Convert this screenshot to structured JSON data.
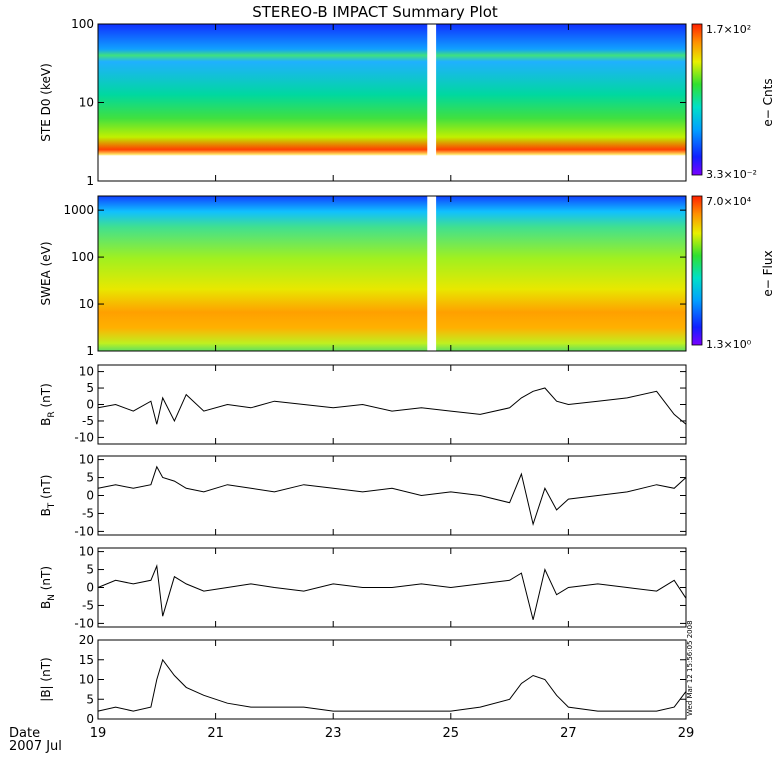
{
  "title": "STEREO-B IMPACT Summary Plot",
  "date_label": "Date",
  "date_value": "2007 Jul",
  "stamp": "Wed Mar 12 15:56:05 2008",
  "chart_data": [
    {
      "id": "ste",
      "type": "heatmap",
      "ylabel": "STE D0 (keV)",
      "yscale": "log",
      "ylim": [
        1,
        100
      ],
      "yticks": [
        {
          "v": 1,
          "label": "1"
        },
        {
          "v": 10,
          "label": "10"
        },
        {
          "v": 100,
          "label": "100"
        }
      ],
      "gap": [
        24.6,
        24.75
      ],
      "colorbar": {
        "label": "e− Cnts",
        "max_label": "1.7×10²",
        "min_label": "3.3×10⁻²"
      }
    },
    {
      "id": "swea",
      "type": "heatmap",
      "ylabel": "SWEA (eV)",
      "yscale": "log",
      "ylim": [
        1,
        2000
      ],
      "yticks": [
        {
          "v": 1,
          "label": "1"
        },
        {
          "v": 10,
          "label": "10"
        },
        {
          "v": 100,
          "label": "100"
        },
        {
          "v": 1000,
          "label": "1000"
        }
      ],
      "gap": [
        24.6,
        24.75
      ],
      "colorbar": {
        "label": "e− Flux",
        "max_label": "7.0×10⁴",
        "min_label": "1.3×10⁰"
      }
    },
    {
      "id": "br",
      "type": "line",
      "ylabel_main": "B",
      "ylabel_sub": "R",
      "ylabel_tail": " (nT)",
      "ylim": [
        -12,
        12
      ],
      "yticks": [
        -10,
        -5,
        0,
        5,
        10
      ],
      "x": [
        19.0,
        19.3,
        19.6,
        19.9,
        20.0,
        20.1,
        20.3,
        20.5,
        20.8,
        21.2,
        21.6,
        22.0,
        22.5,
        23.0,
        23.5,
        24.0,
        24.5,
        25.0,
        25.5,
        26.0,
        26.2,
        26.4,
        26.6,
        26.8,
        27.0,
        27.5,
        28.0,
        28.5,
        28.8,
        29.0
      ],
      "y": [
        -1,
        0,
        -2,
        1,
        -6,
        2,
        -5,
        3,
        -2,
        0,
        -1,
        1,
        0,
        -1,
        0,
        -2,
        -1,
        -2,
        -3,
        -1,
        2,
        4,
        5,
        1,
        0,
        1,
        2,
        4,
        -3,
        -6
      ]
    },
    {
      "id": "bt",
      "type": "line",
      "ylabel_main": "B",
      "ylabel_sub": "T",
      "ylabel_tail": " (nT)",
      "ylim": [
        -11,
        11
      ],
      "yticks": [
        -10,
        -5,
        0,
        5,
        10
      ],
      "x": [
        19.0,
        19.3,
        19.6,
        19.9,
        20.0,
        20.1,
        20.3,
        20.5,
        20.8,
        21.2,
        21.6,
        22.0,
        22.5,
        23.0,
        23.5,
        24.0,
        24.5,
        25.0,
        25.5,
        26.0,
        26.2,
        26.4,
        26.6,
        26.8,
        27.0,
        27.5,
        28.0,
        28.5,
        28.8,
        29.0
      ],
      "y": [
        2,
        3,
        2,
        3,
        8,
        5,
        4,
        2,
        1,
        3,
        2,
        1,
        3,
        2,
        1,
        2,
        0,
        1,
        0,
        -2,
        6,
        -8,
        2,
        -4,
        -1,
        0,
        1,
        3,
        2,
        5
      ]
    },
    {
      "id": "bn",
      "type": "line",
      "ylabel_main": "B",
      "ylabel_sub": "N",
      "ylabel_tail": " (nT)",
      "ylim": [
        -11,
        11
      ],
      "yticks": [
        -10,
        -5,
        0,
        5,
        10
      ],
      "x": [
        19.0,
        19.3,
        19.6,
        19.9,
        20.0,
        20.1,
        20.3,
        20.5,
        20.8,
        21.2,
        21.6,
        22.0,
        22.5,
        23.0,
        23.5,
        24.0,
        24.5,
        25.0,
        25.5,
        26.0,
        26.2,
        26.4,
        26.6,
        26.8,
        27.0,
        27.5,
        28.0,
        28.5,
        28.8,
        29.0
      ],
      "y": [
        0,
        2,
        1,
        2,
        6,
        -8,
        3,
        1,
        -1,
        0,
        1,
        0,
        -1,
        1,
        0,
        0,
        1,
        0,
        1,
        2,
        4,
        -9,
        5,
        -2,
        0,
        1,
        0,
        -1,
        2,
        -3
      ]
    },
    {
      "id": "bmag",
      "type": "line",
      "ylabel_main": "|B| (nT)",
      "ylabel_sub": "",
      "ylabel_tail": "",
      "ylim": [
        0,
        20
      ],
      "yticks": [
        0,
        5,
        10,
        15,
        20
      ],
      "x": [
        19.0,
        19.3,
        19.6,
        19.9,
        20.0,
        20.1,
        20.3,
        20.5,
        20.8,
        21.2,
        21.6,
        22.0,
        22.5,
        23.0,
        23.5,
        24.0,
        24.5,
        25.0,
        25.5,
        26.0,
        26.2,
        26.4,
        26.6,
        26.8,
        27.0,
        27.5,
        28.0,
        28.5,
        28.8,
        29.0
      ],
      "y": [
        2,
        3,
        2,
        3,
        10,
        15,
        11,
        8,
        6,
        4,
        3,
        3,
        3,
        2,
        2,
        2,
        2,
        2,
        3,
        5,
        9,
        11,
        10,
        6,
        3,
        2,
        2,
        2,
        3,
        7
      ]
    }
  ],
  "xaxis": {
    "xlim": [
      19,
      29
    ],
    "ticks": [
      19,
      21,
      23,
      25,
      27,
      29
    ],
    "tick_labels": [
      "19",
      "21",
      "23",
      "25",
      "27",
      "29"
    ]
  }
}
